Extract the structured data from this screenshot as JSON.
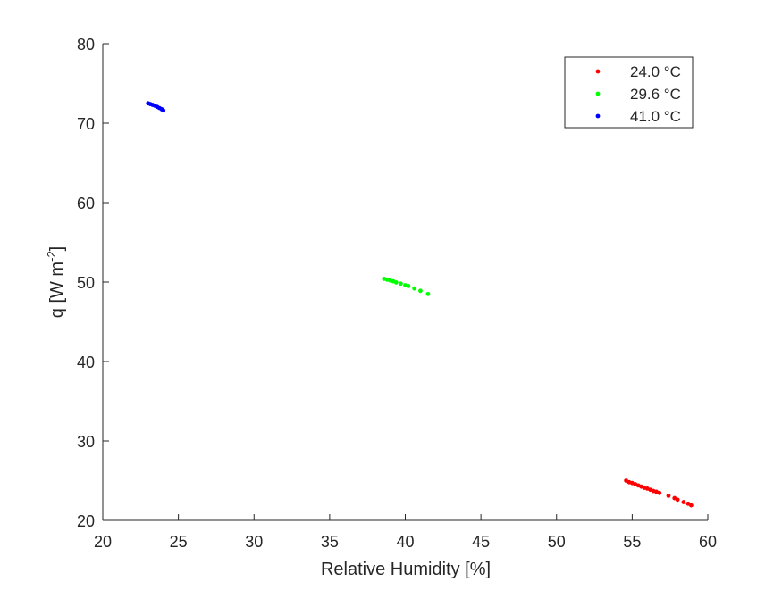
{
  "chart_data": {
    "type": "scatter",
    "xlabel": "Relative Humidity [%]",
    "ylabel_main": "q [W m",
    "ylabel_sup": "-2",
    "ylabel_end": "]",
    "xlim": [
      20,
      60
    ],
    "ylim": [
      20,
      80
    ],
    "xticks": [
      20,
      25,
      30,
      35,
      40,
      45,
      50,
      55,
      60
    ],
    "yticks": [
      20,
      30,
      40,
      50,
      60,
      70,
      80
    ],
    "grid": false,
    "legend_position": "top-right",
    "series": [
      {
        "name": "24.0 °C",
        "color": "#ff0000",
        "x": [
          54.6,
          54.8,
          55.0,
          55.2,
          55.4,
          55.6,
          55.8,
          56.0,
          56.2,
          56.4,
          56.6,
          56.8,
          57.4,
          57.8,
          58.0,
          58.4,
          58.7,
          58.9
        ],
        "y": [
          25.0,
          24.8,
          24.7,
          24.55,
          24.4,
          24.25,
          24.1,
          24.0,
          23.85,
          23.7,
          23.6,
          23.45,
          23.1,
          22.8,
          22.6,
          22.3,
          22.1,
          21.9
        ]
      },
      {
        "name": "29.6 °C",
        "color": "#00ff00",
        "x": [
          38.6,
          38.8,
          39.0,
          39.2,
          39.4,
          39.7,
          40.0,
          40.2,
          40.6,
          41.0,
          41.5
        ],
        "y": [
          50.4,
          50.3,
          50.2,
          50.1,
          49.95,
          49.8,
          49.6,
          49.5,
          49.2,
          48.9,
          48.5
        ]
      },
      {
        "name": "41.0 °C",
        "color": "#0000ff",
        "x": [
          23.0,
          23.15,
          23.3,
          23.45,
          23.6,
          23.75,
          23.9,
          24.0
        ],
        "y": [
          72.5,
          72.4,
          72.3,
          72.2,
          72.05,
          71.9,
          71.75,
          71.6
        ]
      }
    ]
  }
}
